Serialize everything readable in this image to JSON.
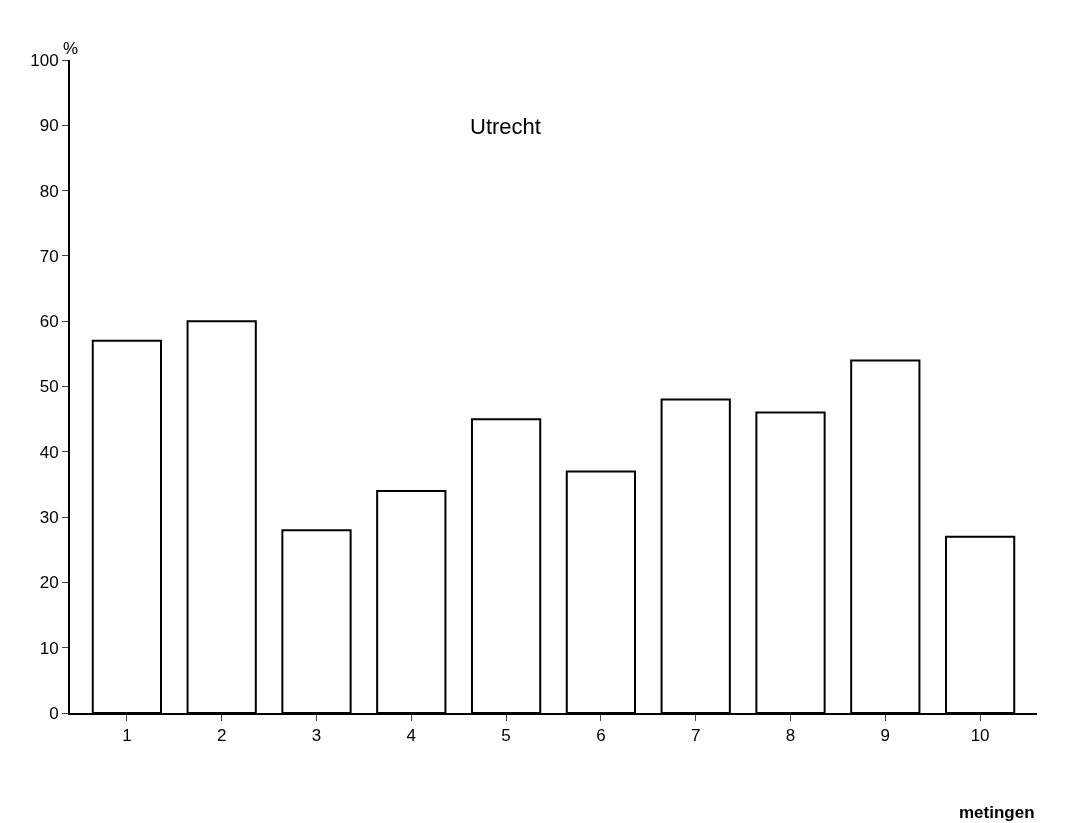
{
  "chart_data": {
    "type": "bar",
    "title": "Utrecht",
    "xlabel": "metingen",
    "ylabel": "%",
    "categories": [
      "1",
      "2",
      "3",
      "4",
      "5",
      "6",
      "7",
      "8",
      "9",
      "10"
    ],
    "values": [
      57,
      60,
      28,
      34,
      45,
      37,
      48,
      46,
      54,
      27
    ],
    "color": "#ffffff",
    "ylim": [
      0,
      100
    ],
    "yticks": [
      0,
      10,
      20,
      30,
      40,
      50,
      60,
      70,
      80,
      90,
      100
    ]
  }
}
